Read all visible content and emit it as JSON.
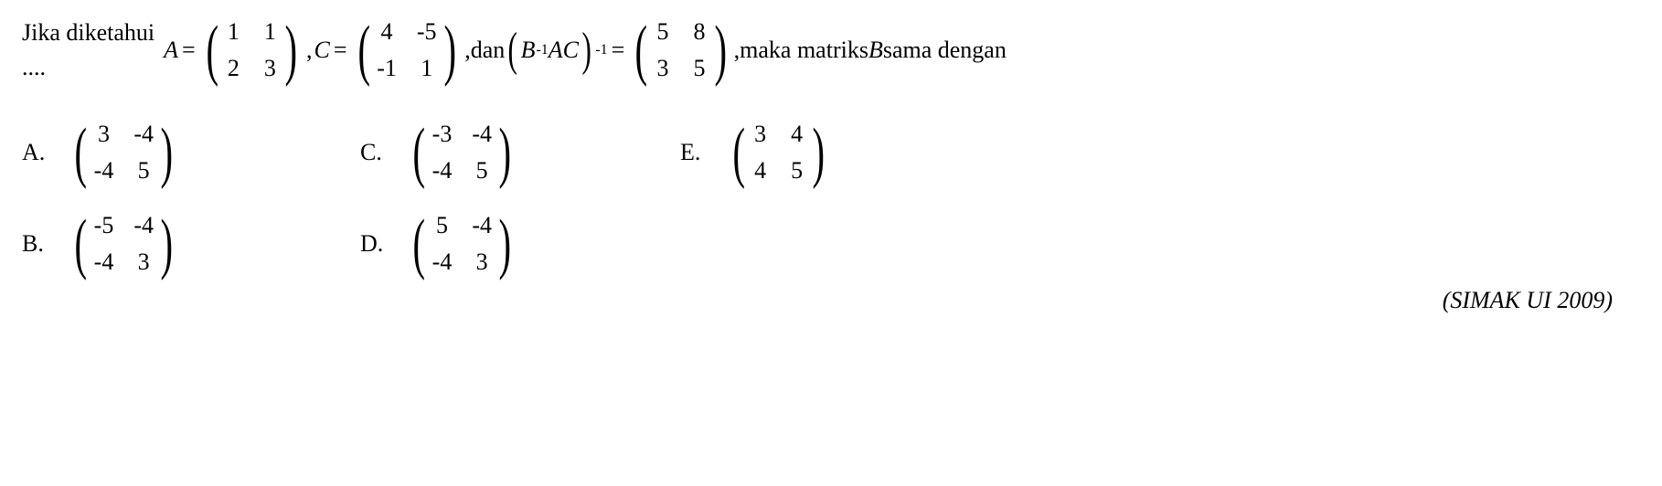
{
  "question": {
    "prefix": "Jika diketahui",
    "dots": "....",
    "A_label": "A",
    "eq": "=",
    "comma": ",",
    "C_label": "C",
    "dan": " dan ",
    "B_label": "B",
    "inv": "-1",
    "AC_label": "AC",
    "tail": " maka matriks ",
    "B_tail": "B",
    "tail2": " sama dengan"
  },
  "matrices": {
    "A": {
      "a11": "1",
      "a12": "1",
      "a21": "2",
      "a22": "3"
    },
    "C": {
      "a11": "4",
      "a12": "-5",
      "a21": "-1",
      "a22": "1"
    },
    "R": {
      "a11": "5",
      "a12": "8",
      "a21": "3",
      "a22": "5"
    }
  },
  "options": {
    "A": {
      "label": "A.",
      "a11": "3",
      "a12": "-4",
      "a21": "-4",
      "a22": "5"
    },
    "B": {
      "label": "B.",
      "a11": "-5",
      "a12": "-4",
      "a21": "-4",
      "a22": "3"
    },
    "C": {
      "label": "C.",
      "a11": "-3",
      "a12": "-4",
      "a21": "-4",
      "a22": "5"
    },
    "D": {
      "label": "D.",
      "a11": "5",
      "a12": "-4",
      "a21": "-4",
      "a22": "3"
    },
    "E": {
      "label": "E.",
      "a11": "3",
      "a12": "4",
      "a21": "4",
      "a22": "5"
    }
  },
  "source": "(SIMAK UI 2009)"
}
